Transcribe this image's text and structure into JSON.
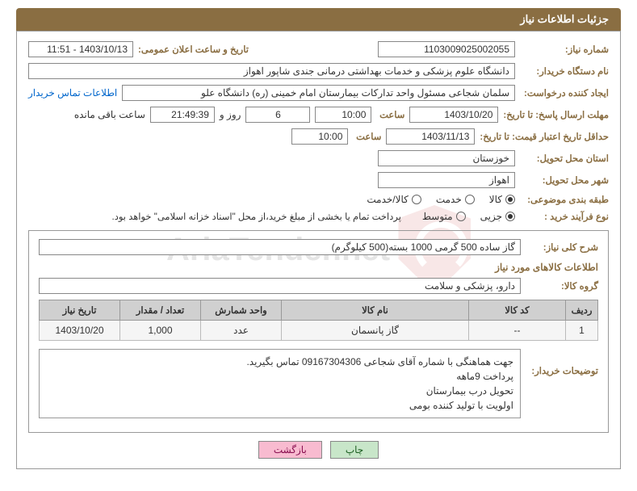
{
  "header": {
    "title": "جزئیات اطلاعات نیاز"
  },
  "fields": {
    "need_no_label": "شماره نیاز:",
    "need_no": "1103009025002055",
    "announce_label": "تاریخ و ساعت اعلان عمومی:",
    "announce_value": "1403/10/13 - 11:51",
    "buyer_org_label": "نام دستگاه خریدار:",
    "buyer_org": "دانشگاه علوم پزشکی و خدمات بهداشتی درمانی جندی شاپور اهواز",
    "requester_label": "ایجاد کننده درخواست:",
    "requester": "سلمان شجاعی مسئول واحد تدارکات بیمارستان امام خمینی (ره) دانشگاه علو",
    "contact_link": "اطلاعات تماس خریدار",
    "deadline_label": "مهلت ارسال پاسخ: تا تاریخ:",
    "deadline_date": "1403/10/20",
    "time_label": "ساعت",
    "deadline_time": "10:00",
    "days_value": "6",
    "days_and": "روز و",
    "countdown": "21:49:39",
    "remaining": "ساعت باقی مانده",
    "validity_label": "حداقل تاریخ اعتبار قیمت: تا تاریخ:",
    "validity_date": "1403/11/13",
    "validity_time": "10:00",
    "province_label": "استان محل تحویل:",
    "province": "خوزستان",
    "city_label": "شهر محل تحویل:",
    "city": "اهواز",
    "class_label": "طبقه بندی موضوعی:",
    "class_goods": "کالا",
    "class_service": "خدمت",
    "class_both": "کالا/خدمت",
    "process_label": "نوع فرآیند خرید :",
    "process_partial": "جزیی",
    "process_medium": "متوسط",
    "payment_note": "پرداخت تمام یا بخشی از مبلغ خرید،از محل \"اسناد خزانه اسلامی\" خواهد بود."
  },
  "detail": {
    "desc_label": "شرح کلی نیاز:",
    "desc": "گاز ساده 500 گرمی 1000 بسته(500 کیلوگرم)",
    "goods_info_title": "اطلاعات کالاهای مورد نیاز",
    "group_label": "گروه کالا:",
    "group": "دارو، پزشکی و سلامت"
  },
  "table": {
    "headers": [
      "ردیف",
      "کد کالا",
      "نام کالا",
      "واحد شمارش",
      "تعداد / مقدار",
      "تاریخ نیاز"
    ],
    "rows": [
      [
        "1",
        "--",
        "گاز پانسمان",
        "عدد",
        "1,000",
        "1403/10/20"
      ]
    ],
    "col_widths": [
      "40px",
      "120px",
      "auto",
      "100px",
      "100px",
      "100px"
    ]
  },
  "notes": {
    "label": "توضیحات خریدار:",
    "lines": [
      "جهت هماهنگی با شماره  آقای شجاعی 09167304306 تماس بگیرید.",
      "پرداخت 9ماهه",
      "تحویل درب بیمارستان",
      "اولویت با تولید کننده بومی"
    ]
  },
  "buttons": {
    "print": "چاپ",
    "back": "بازگشت"
  }
}
